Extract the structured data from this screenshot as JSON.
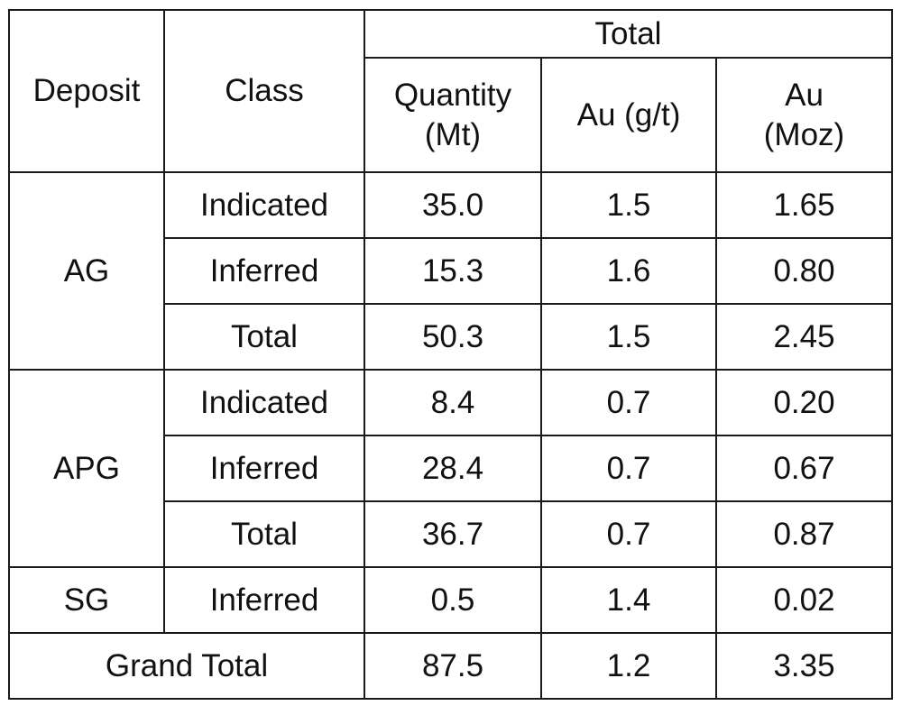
{
  "table": {
    "header": {
      "deposit": "Deposit",
      "class": "Class",
      "group_total": "Total",
      "quantity_line1": "Quantity",
      "quantity_line2": "(Mt)",
      "au_grade": "Au (g/t)",
      "au_moz_line1": "Au",
      "au_moz_line2": "(Moz)"
    },
    "rows": [
      {
        "deposit": "AG",
        "class": "Indicated",
        "quantity": "35.0",
        "au_gt": "1.5",
        "au_moz": "1.65",
        "bold": true
      },
      {
        "deposit": "AG",
        "class": "Inferred",
        "quantity": "15.3",
        "au_gt": "1.6",
        "au_moz": "0.80",
        "bold": false
      },
      {
        "deposit": "AG",
        "class": "Total",
        "quantity": "50.3",
        "au_gt": "1.5",
        "au_moz": "2.45",
        "bold": true
      },
      {
        "deposit": "APG",
        "class": "Indicated",
        "quantity": "8.4",
        "au_gt": "0.7",
        "au_moz": "0.20",
        "bold": true
      },
      {
        "deposit": "APG",
        "class": "Inferred",
        "quantity": "28.4",
        "au_gt": "0.7",
        "au_moz": "0.67",
        "bold": false
      },
      {
        "deposit": "APG",
        "class": "Total",
        "quantity": "36.7",
        "au_gt": "0.7",
        "au_moz": "0.87",
        "bold": true
      },
      {
        "deposit": "SG",
        "class": "Inferred",
        "quantity": "0.5",
        "au_gt": "1.4",
        "au_moz": "0.02",
        "bold": false
      }
    ],
    "grand_total": {
      "label": "Grand Total",
      "quantity": "87.5",
      "au_gt": "1.2",
      "au_moz": "3.35"
    }
  }
}
